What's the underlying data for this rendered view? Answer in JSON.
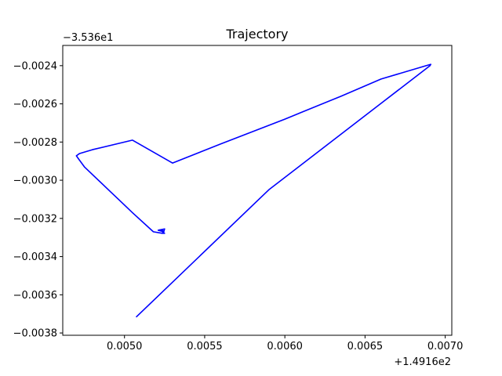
{
  "chart_data": {
    "type": "line",
    "title": "Trajectory",
    "xlabel": "",
    "ylabel": "",
    "x_offset_label": "+1.4916e2",
    "y_offset_label": "−3.536e1",
    "x_ticks": [
      0.005,
      0.0055,
      0.006,
      0.0065,
      0.007
    ],
    "x_tick_labels": [
      "0.0050",
      "0.0055",
      "0.0060",
      "0.0065",
      "0.0070"
    ],
    "y_ticks": [
      -0.0024,
      -0.0026,
      -0.0028,
      -0.003,
      -0.0032,
      -0.0034,
      -0.0036,
      -0.0038
    ],
    "y_tick_labels": [
      "−0.0024",
      "−0.0026",
      "−0.0028",
      "−0.0030",
      "−0.0032",
      "−0.0034",
      "−0.0036",
      "−0.0038"
    ],
    "xlim": [
      0.004615,
      0.007041
    ],
    "ylim": [
      -0.003812,
      -0.002294
    ],
    "grid": false,
    "series": [
      {
        "color": "#0000ff",
        "x": [
          0.005075,
          0.0059,
          0.006905,
          0.00691,
          0.00688,
          0.0066,
          0.00635,
          0.006,
          0.0056,
          0.0053,
          0.00505,
          0.0048,
          0.00472,
          0.0047,
          0.004715,
          0.00475,
          0.0049,
          0.00505,
          0.00518,
          0.005235,
          0.00525,
          0.00522,
          0.00524,
          0.005245,
          0.00521,
          0.00525,
          0.005245,
          0.00522
        ],
        "y": [
          -0.003715,
          -0.00305,
          -0.0024,
          -0.002393,
          -0.0024,
          -0.00247,
          -0.00256,
          -0.00268,
          -0.00281,
          -0.00291,
          -0.00279,
          -0.00284,
          -0.00286,
          -0.002872,
          -0.00289,
          -0.00293,
          -0.00305,
          -0.00317,
          -0.00327,
          -0.003278,
          -0.003278,
          -0.00326,
          -0.003265,
          -0.00327,
          -0.003262,
          -0.003255,
          -0.00327,
          -0.00326
        ]
      }
    ]
  }
}
